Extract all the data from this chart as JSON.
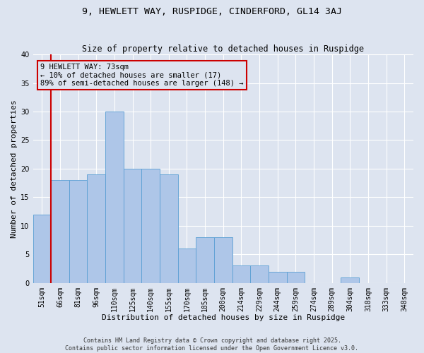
{
  "title": "9, HEWLETT WAY, RUSPIDGE, CINDERFORD, GL14 3AJ",
  "subtitle": "Size of property relative to detached houses in Ruspidge",
  "xlabel": "Distribution of detached houses by size in Ruspidge",
  "ylabel": "Number of detached properties",
  "categories": [
    "51sqm",
    "66sqm",
    "81sqm",
    "96sqm",
    "110sqm",
    "125sqm",
    "140sqm",
    "155sqm",
    "170sqm",
    "185sqm",
    "200sqm",
    "214sqm",
    "229sqm",
    "244sqm",
    "259sqm",
    "274sqm",
    "289sqm",
    "304sqm",
    "318sqm",
    "333sqm",
    "348sqm"
  ],
  "values": [
    12,
    18,
    18,
    19,
    30,
    20,
    20,
    19,
    6,
    8,
    8,
    3,
    3,
    2,
    2,
    0,
    0,
    1,
    0,
    0,
    0
  ],
  "bar_color": "#aec6e8",
  "bar_edge_color": "#5a9fd4",
  "ylim": [
    0,
    40
  ],
  "yticks": [
    0,
    5,
    10,
    15,
    20,
    25,
    30,
    35,
    40
  ],
  "vline_x": 0.5,
  "vline_color": "#cc0000",
  "annotation_title": "9 HEWLETT WAY: 73sqm",
  "annotation_line1": "← 10% of detached houses are smaller (17)",
  "annotation_line2": "89% of semi-detached houses are larger (148) →",
  "annotation_box_color": "#cc0000",
  "background_color": "#dde4f0",
  "grid_color": "#ffffff",
  "footer": "Contains HM Land Registry data © Crown copyright and database right 2025.\nContains public sector information licensed under the Open Government Licence v3.0.",
  "title_fontsize": 9.5,
  "subtitle_fontsize": 8.5,
  "xlabel_fontsize": 8,
  "ylabel_fontsize": 8,
  "tick_fontsize": 7,
  "footer_fontsize": 6,
  "annotation_fontsize": 7.5
}
